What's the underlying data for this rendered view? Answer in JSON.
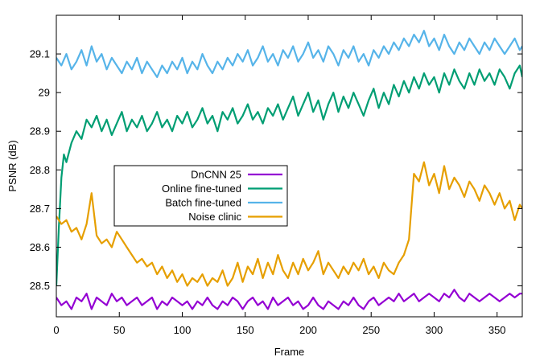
{
  "chart_data": {
    "type": "line",
    "title": "",
    "xlabel": "Frame",
    "ylabel": "PSNR (dB)",
    "xlim": [
      0,
      370
    ],
    "ylim": [
      28.42,
      29.2
    ],
    "x_ticks": [
      0,
      50,
      100,
      150,
      200,
      250,
      300,
      350
    ],
    "y_ticks": [
      28.5,
      28.6,
      28.7,
      28.8,
      28.9,
      29,
      29.1
    ],
    "grid": false,
    "legend_position": "center-left",
    "series": [
      {
        "name": "DnCNN 25",
        "color": "#9400d3",
        "x": [
          0,
          4,
          8,
          12,
          16,
          20,
          24,
          28,
          32,
          36,
          40,
          44,
          48,
          52,
          56,
          60,
          64,
          68,
          72,
          76,
          80,
          84,
          88,
          92,
          96,
          100,
          104,
          108,
          112,
          116,
          120,
          124,
          128,
          132,
          136,
          140,
          144,
          148,
          152,
          156,
          160,
          164,
          168,
          172,
          176,
          180,
          184,
          188,
          192,
          196,
          200,
          204,
          208,
          212,
          216,
          220,
          224,
          228,
          232,
          236,
          240,
          244,
          248,
          252,
          256,
          260,
          264,
          268,
          272,
          276,
          280,
          284,
          288,
          292,
          296,
          300,
          304,
          308,
          312,
          316,
          320,
          324,
          328,
          332,
          336,
          340,
          344,
          348,
          352,
          356,
          360,
          364,
          368,
          370
        ],
        "y": [
          28.47,
          28.45,
          28.46,
          28.44,
          28.47,
          28.46,
          28.48,
          28.44,
          28.47,
          28.46,
          28.45,
          28.48,
          28.46,
          28.47,
          28.45,
          28.46,
          28.47,
          28.45,
          28.46,
          28.47,
          28.44,
          28.46,
          28.45,
          28.47,
          28.46,
          28.45,
          28.46,
          28.44,
          28.46,
          28.45,
          28.47,
          28.45,
          28.44,
          28.46,
          28.45,
          28.47,
          28.46,
          28.44,
          28.46,
          28.47,
          28.45,
          28.46,
          28.44,
          28.47,
          28.45,
          28.46,
          28.47,
          28.45,
          28.46,
          28.44,
          28.45,
          28.47,
          28.45,
          28.44,
          28.46,
          28.45,
          28.44,
          28.46,
          28.45,
          28.47,
          28.45,
          28.44,
          28.46,
          28.47,
          28.45,
          28.46,
          28.47,
          28.46,
          28.48,
          28.46,
          28.47,
          28.48,
          28.46,
          28.47,
          28.48,
          28.47,
          28.46,
          28.48,
          28.47,
          28.49,
          28.47,
          28.46,
          28.48,
          28.47,
          28.46,
          28.47,
          28.48,
          28.47,
          28.46,
          28.47,
          28.48,
          28.47,
          28.48,
          28.48
        ]
      },
      {
        "name": "Online fine-tuned",
        "color": "#009e73",
        "x": [
          0,
          2,
          4,
          6,
          8,
          12,
          16,
          20,
          24,
          28,
          32,
          36,
          40,
          44,
          48,
          52,
          56,
          60,
          64,
          68,
          72,
          76,
          80,
          84,
          88,
          92,
          96,
          100,
          104,
          108,
          112,
          116,
          120,
          124,
          128,
          132,
          136,
          140,
          144,
          148,
          152,
          156,
          160,
          164,
          168,
          172,
          176,
          180,
          184,
          188,
          192,
          196,
          200,
          204,
          208,
          212,
          216,
          220,
          224,
          228,
          232,
          236,
          240,
          244,
          248,
          252,
          256,
          260,
          264,
          268,
          272,
          276,
          280,
          284,
          288,
          292,
          296,
          300,
          304,
          308,
          312,
          316,
          320,
          324,
          328,
          332,
          336,
          340,
          344,
          348,
          352,
          356,
          360,
          364,
          368,
          370
        ],
        "y": [
          28.5,
          28.65,
          28.78,
          28.84,
          28.82,
          28.87,
          28.9,
          28.88,
          28.93,
          28.91,
          28.94,
          28.9,
          28.93,
          28.89,
          28.92,
          28.95,
          28.9,
          28.93,
          28.91,
          28.94,
          28.9,
          28.92,
          28.95,
          28.91,
          28.93,
          28.9,
          28.94,
          28.92,
          28.95,
          28.91,
          28.93,
          28.96,
          28.92,
          28.94,
          28.9,
          28.95,
          28.93,
          28.96,
          28.92,
          28.94,
          28.97,
          28.93,
          28.95,
          28.92,
          28.96,
          28.94,
          28.97,
          28.93,
          28.96,
          28.99,
          28.94,
          28.97,
          29.0,
          28.95,
          28.98,
          28.93,
          28.97,
          29.0,
          28.95,
          28.99,
          28.96,
          29.0,
          28.97,
          28.94,
          28.98,
          29.01,
          28.96,
          29.0,
          28.97,
          29.02,
          28.99,
          29.03,
          29.0,
          29.04,
          29.01,
          29.05,
          29.02,
          29.04,
          29.0,
          29.05,
          29.02,
          29.06,
          29.03,
          29.01,
          29.05,
          29.02,
          29.06,
          29.03,
          29.05,
          29.02,
          29.06,
          29.04,
          29.01,
          29.05,
          29.07,
          29.04
        ]
      },
      {
        "name": "Batch fine-tuned",
        "color": "#56b4e9",
        "x": [
          0,
          4,
          8,
          12,
          16,
          20,
          24,
          28,
          32,
          36,
          40,
          44,
          48,
          52,
          56,
          60,
          64,
          68,
          72,
          76,
          80,
          84,
          88,
          92,
          96,
          100,
          104,
          108,
          112,
          116,
          120,
          124,
          128,
          132,
          136,
          140,
          144,
          148,
          152,
          156,
          160,
          164,
          168,
          172,
          176,
          180,
          184,
          188,
          192,
          196,
          200,
          204,
          208,
          212,
          216,
          220,
          224,
          228,
          232,
          236,
          240,
          244,
          248,
          252,
          256,
          260,
          264,
          268,
          272,
          276,
          280,
          284,
          288,
          292,
          296,
          300,
          304,
          308,
          312,
          316,
          320,
          324,
          328,
          332,
          336,
          340,
          344,
          348,
          352,
          356,
          360,
          364,
          368,
          370
        ],
        "y": [
          29.09,
          29.07,
          29.1,
          29.06,
          29.08,
          29.11,
          29.07,
          29.12,
          29.08,
          29.1,
          29.06,
          29.09,
          29.07,
          29.05,
          29.08,
          29.06,
          29.09,
          29.05,
          29.08,
          29.06,
          29.04,
          29.07,
          29.05,
          29.08,
          29.06,
          29.09,
          29.05,
          29.08,
          29.06,
          29.1,
          29.07,
          29.05,
          29.08,
          29.06,
          29.09,
          29.07,
          29.1,
          29.08,
          29.11,
          29.07,
          29.09,
          29.12,
          29.08,
          29.1,
          29.07,
          29.11,
          29.09,
          29.12,
          29.08,
          29.1,
          29.13,
          29.09,
          29.11,
          29.08,
          29.12,
          29.1,
          29.07,
          29.11,
          29.09,
          29.12,
          29.08,
          29.1,
          29.07,
          29.11,
          29.09,
          29.12,
          29.1,
          29.13,
          29.11,
          29.14,
          29.12,
          29.15,
          29.13,
          29.16,
          29.12,
          29.14,
          29.11,
          29.15,
          29.12,
          29.1,
          29.13,
          29.11,
          29.14,
          29.12,
          29.1,
          29.13,
          29.11,
          29.14,
          29.12,
          29.1,
          29.12,
          29.14,
          29.11,
          29.12
        ]
      },
      {
        "name": "Noise clinic",
        "color": "#e69f00",
        "x": [
          0,
          4,
          8,
          12,
          16,
          20,
          24,
          28,
          32,
          36,
          40,
          44,
          48,
          52,
          56,
          60,
          64,
          68,
          72,
          76,
          80,
          84,
          88,
          92,
          96,
          100,
          104,
          108,
          112,
          116,
          120,
          124,
          128,
          132,
          136,
          140,
          144,
          148,
          152,
          156,
          160,
          164,
          168,
          172,
          176,
          180,
          184,
          188,
          192,
          196,
          200,
          204,
          208,
          212,
          216,
          220,
          224,
          228,
          232,
          236,
          240,
          244,
          248,
          252,
          256,
          260,
          264,
          268,
          272,
          276,
          280,
          284,
          288,
          292,
          296,
          300,
          304,
          308,
          312,
          316,
          320,
          324,
          328,
          332,
          336,
          340,
          344,
          348,
          352,
          356,
          360,
          364,
          368,
          370
        ],
        "y": [
          28.68,
          28.66,
          28.67,
          28.64,
          28.65,
          28.62,
          28.66,
          28.74,
          28.63,
          28.61,
          28.62,
          28.6,
          28.64,
          28.62,
          28.6,
          28.58,
          28.56,
          28.57,
          28.55,
          28.56,
          28.53,
          28.55,
          28.52,
          28.54,
          28.51,
          28.53,
          28.5,
          28.52,
          28.51,
          28.53,
          28.5,
          28.52,
          28.51,
          28.54,
          28.5,
          28.52,
          28.56,
          28.51,
          28.55,
          28.53,
          28.57,
          28.52,
          28.56,
          28.53,
          28.58,
          28.54,
          28.52,
          28.56,
          28.53,
          28.57,
          28.54,
          28.56,
          28.59,
          28.53,
          28.56,
          28.54,
          28.52,
          28.55,
          28.53,
          28.56,
          28.54,
          28.57,
          28.53,
          28.55,
          28.52,
          28.56,
          28.54,
          28.53,
          28.56,
          28.58,
          28.62,
          28.79,
          28.77,
          28.82,
          28.76,
          28.79,
          28.74,
          28.81,
          28.75,
          28.78,
          28.76,
          28.73,
          28.77,
          28.75,
          28.72,
          28.76,
          28.74,
          28.71,
          28.74,
          28.7,
          28.72,
          28.67,
          28.71,
          28.7
        ]
      }
    ]
  }
}
